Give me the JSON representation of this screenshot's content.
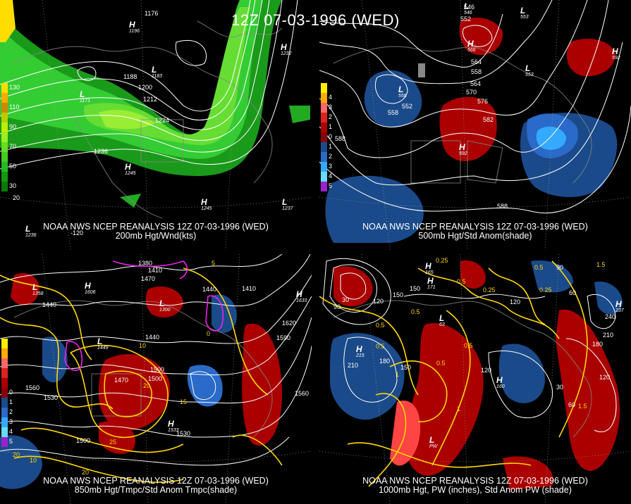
{
  "title": "12Z 07-03-1996 (WED)",
  "panels": {
    "p200": {
      "caption1": "NOAA NWS NCEP REANALYSIS 12Z 07-03-1996 (WED)",
      "caption2": "200mb Hgt/Wnd(kts)",
      "legend": [
        {
          "label": "130",
          "color": "#ffdd00"
        },
        {
          "label": "",
          "color": "#ffaa00"
        },
        {
          "label": "110",
          "color": "#cc8800"
        },
        {
          "label": "",
          "color": "#bbcc00"
        },
        {
          "label": "90",
          "color": "#bbee00"
        },
        {
          "label": "",
          "color": "#99ee22"
        },
        {
          "label": "70",
          "color": "#66dd22"
        },
        {
          "label": "",
          "color": "#44cc22"
        },
        {
          "label": "50",
          "color": "#22bb22"
        },
        {
          "label": "",
          "color": "#119911"
        },
        {
          "label": "30",
          "color": "#0a7a0a"
        }
      ],
      "ticks": [
        "20",
        "-120"
      ],
      "highs": [
        {
          "label": "H",
          "value": "1196"
        },
        {
          "label": "H",
          "value": "1232"
        },
        {
          "label": "H",
          "value": "1245"
        },
        {
          "label": "H",
          "value": "1245"
        },
        {
          "label": "L",
          "value": "1171"
        },
        {
          "label": "L",
          "value": "1183"
        },
        {
          "label": "L",
          "value": "1237"
        },
        {
          "label": "L",
          "value": "1236"
        }
      ],
      "contours": [
        "1176",
        "1188",
        "1200",
        "1212",
        "1224",
        "1236"
      ]
    },
    "p500": {
      "caption1": "NOAA NWS NCEP REANALYSIS 12Z 07-03-1996 (WED)",
      "caption2": "500mb Hgt/Std Anom(shade)",
      "legend": [
        {
          "label": "",
          "color": "#ffee00"
        },
        {
          "label": "4",
          "color": "#ffaa00"
        },
        {
          "label": "3",
          "color": "#ff6666"
        },
        {
          "label": "2",
          "color": "#dd2222"
        },
        {
          "label": "1",
          "color": "#aa0000"
        },
        {
          "label": "0",
          "color": "#880000"
        },
        {
          "label": "1",
          "color": "#1a4a8a"
        },
        {
          "label": "2",
          "color": "#2a6ac8"
        },
        {
          "label": "3",
          "color": "#33aaff"
        },
        {
          "label": "4",
          "color": "#66ddff"
        },
        {
          "label": "5",
          "color": "#9922cc"
        }
      ],
      "highs": [
        {
          "label": "H",
          "value": "566"
        },
        {
          "label": "H",
          "value": "592"
        },
        {
          "label": "H",
          "value": "592"
        },
        {
          "label": "L",
          "value": "546"
        },
        {
          "label": "L",
          "value": "558"
        },
        {
          "label": "L",
          "value": "553"
        },
        {
          "label": "L",
          "value": "553"
        }
      ],
      "contours": [
        "546",
        "552",
        "558",
        "564",
        "570",
        "576",
        "582",
        "588",
        "588",
        "552",
        "558",
        "564"
      ]
    },
    "p850": {
      "caption1": "NOAA NWS NCEP REANALYSIS 12Z 07-03-1996 (WED)",
      "caption2": "850mb Hgt/Tmpc/Std Anom Tmpc(shade)",
      "legend": [
        {
          "label": "",
          "color": "#ffee00"
        },
        {
          "label": "",
          "color": "#ffaa00"
        },
        {
          "label": "",
          "color": "#ff6666"
        },
        {
          "label": "",
          "color": "#dd2222"
        },
        {
          "label": "",
          "color": "#aa0000"
        },
        {
          "label": "0",
          "color": "#880000"
        },
        {
          "label": "1",
          "color": "#1a4a8a"
        },
        {
          "label": "2",
          "color": "#2a6ac8"
        },
        {
          "label": "3",
          "color": "#33aaff"
        },
        {
          "label": "4",
          "color": "#66ddff"
        },
        {
          "label": "5",
          "color": "#9922cc"
        }
      ],
      "highs": [
        {
          "label": "H",
          "value": "1606"
        },
        {
          "label": "H",
          "value": "1633"
        },
        {
          "label": "H",
          "value": "1533"
        },
        {
          "label": "L",
          "value": "1358"
        },
        {
          "label": "L",
          "value": "1449"
        },
        {
          "label": "L",
          "value": "1300"
        }
      ],
      "contours": [
        "1380",
        "1410",
        "1440",
        "1470",
        "1500",
        "1530",
        "1560",
        "1590",
        "1620",
        "1440",
        "1470",
        "1500",
        "1530",
        "1560",
        "1410",
        "1440",
        "1500"
      ],
      "temps": [
        "5",
        "10",
        "15",
        "20",
        "25",
        "20",
        "10",
        "0",
        "20"
      ]
    },
    "p1000": {
      "caption1": "NOAA NWS NCEP REANALYSIS 12Z 07-03-1996 (WED)",
      "caption2": "1000mb Hgt, PW (inches), Std Anom PW (shade)",
      "highs": [
        {
          "label": "H",
          "value": "165"
        },
        {
          "label": "H",
          "value": "171"
        },
        {
          "label": "H",
          "value": "215"
        },
        {
          "label": "H",
          "value": "237"
        },
        {
          "label": "H",
          "value": "160"
        },
        {
          "label": "L",
          "value": "63"
        },
        {
          "label": "L",
          "value": "PW"
        }
      ],
      "contours": [
        "90",
        "30",
        "120",
        "150",
        "90",
        "120",
        "150",
        "180",
        "210",
        "240",
        "60",
        "30",
        "60",
        "120",
        "180",
        "210",
        "150",
        "120"
      ],
      "pw": [
        "0.25",
        "0.5",
        "0.5",
        "0.25",
        "0.5",
        "0.25",
        "1.5",
        "0.5",
        "1",
        "0.5",
        "0.5",
        "1.5",
        "0.5",
        "1"
      ]
    }
  }
}
